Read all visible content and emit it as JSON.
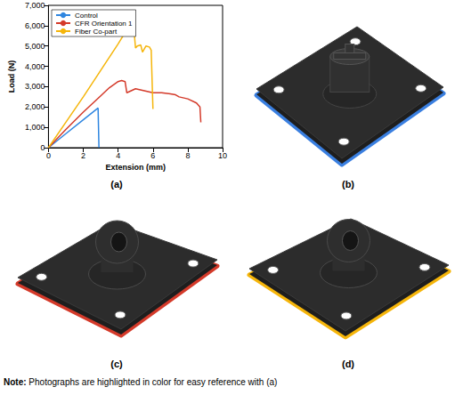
{
  "chart_data": {
    "type": "line",
    "x_label": "Extension (mm)",
    "y_label": "Load (N)",
    "xlim": [
      0,
      10
    ],
    "xticks": [
      0,
      2,
      4,
      6,
      8,
      10
    ],
    "ylim": [
      0,
      7000
    ],
    "yticks": [
      0,
      {
        "value": 1000,
        "label": "1,000"
      },
      {
        "value": 2000,
        "label": "2,000"
      },
      {
        "value": 3000,
        "label": "3,000"
      },
      {
        "value": 4000,
        "label": "4,000"
      },
      {
        "value": 5000,
        "label": "5,000"
      },
      {
        "value": 6000,
        "label": "6,000"
      },
      {
        "value": 7000,
        "label": "7,000"
      }
    ],
    "grid": false,
    "legend": "upper left",
    "series": [
      {
        "name": "Control",
        "color": "#2f86e0",
        "x": [
          0,
          1,
          2,
          2.85,
          2.9
        ],
        "values": [
          0,
          690,
          1370,
          1950,
          0
        ]
      },
      {
        "name": "CFR Orientation 1",
        "color": "#d43a2a",
        "x": [
          0,
          1,
          2,
          3,
          3.5,
          4,
          4.2,
          4.4,
          4.5,
          5,
          5.5,
          6,
          6.5,
          7,
          7.3,
          7.5,
          8,
          8.5,
          8.7,
          8.75
        ],
        "values": [
          0,
          900,
          1750,
          2550,
          2950,
          3250,
          3300,
          3250,
          2700,
          2900,
          2800,
          2700,
          2700,
          2650,
          2600,
          2500,
          2400,
          2200,
          2000,
          1250
        ]
      },
      {
        "name": "Fiber Co-part",
        "color": "#f5b50a",
        "x": [
          0,
          1,
          2,
          3,
          4,
          4.5,
          4.7,
          4.8,
          4.9,
          5.0,
          5.1,
          5.3,
          5.4,
          5.6,
          5.8,
          5.9,
          6.0
        ],
        "values": [
          0,
          1250,
          2500,
          3800,
          5100,
          5800,
          6100,
          6150,
          5900,
          4900,
          5000,
          5050,
          4700,
          5000,
          4950,
          4800,
          1900
        ]
      }
    ]
  },
  "panel_labels": [
    "(a)",
    "(b)",
    "(c)",
    "(d)"
  ],
  "panel_colors": [
    "#3a7fe0",
    "#d43a2a",
    "#f5b50a"
  ],
  "note": {
    "label": "Note:",
    "text": "Photographs are highlighted in color for easy reference with (a)"
  }
}
